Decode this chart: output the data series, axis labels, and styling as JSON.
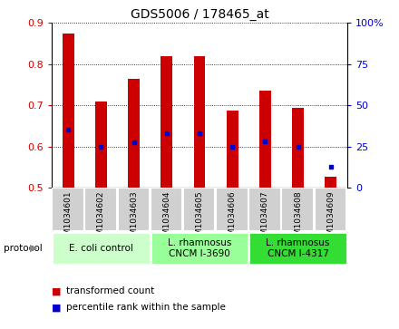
{
  "title": "GDS5006 / 178465_at",
  "samples": [
    "GSM1034601",
    "GSM1034602",
    "GSM1034603",
    "GSM1034604",
    "GSM1034605",
    "GSM1034606",
    "GSM1034607",
    "GSM1034608",
    "GSM1034609"
  ],
  "transformed_count": [
    0.875,
    0.71,
    0.765,
    0.82,
    0.82,
    0.687,
    0.735,
    0.693,
    0.527
  ],
  "percentile_rank": [
    0.64,
    0.6,
    0.61,
    0.632,
    0.633,
    0.6,
    0.613,
    0.6,
    0.55
  ],
  "ylim_left": [
    0.5,
    0.9
  ],
  "ylim_right": [
    0,
    100
  ],
  "yticks_left": [
    0.5,
    0.6,
    0.7,
    0.8,
    0.9
  ],
  "yticks_right": [
    0,
    25,
    50,
    75,
    100
  ],
  "bar_color": "#cc0000",
  "dot_color": "#0000cc",
  "bar_bottom": 0.5,
  "protocol_groups": [
    {
      "label": "E. coli control",
      "start": 0,
      "end": 3,
      "color": "#ccffcc"
    },
    {
      "label": "L. rhamnosus\nCNCM I-3690",
      "start": 3,
      "end": 6,
      "color": "#99ff99"
    },
    {
      "label": "L. rhamnosus\nCNCM I-4317",
      "start": 6,
      "end": 9,
      "color": "#33dd33"
    }
  ],
  "tick_label_color_left": "#cc0000",
  "tick_label_color_right": "#0000cc",
  "bar_width": 0.35,
  "sample_cell_color": "#d0d0d0",
  "legend_items": [
    {
      "label": "transformed count",
      "color": "#cc0000"
    },
    {
      "label": "percentile rank within the sample",
      "color": "#0000cc"
    }
  ]
}
